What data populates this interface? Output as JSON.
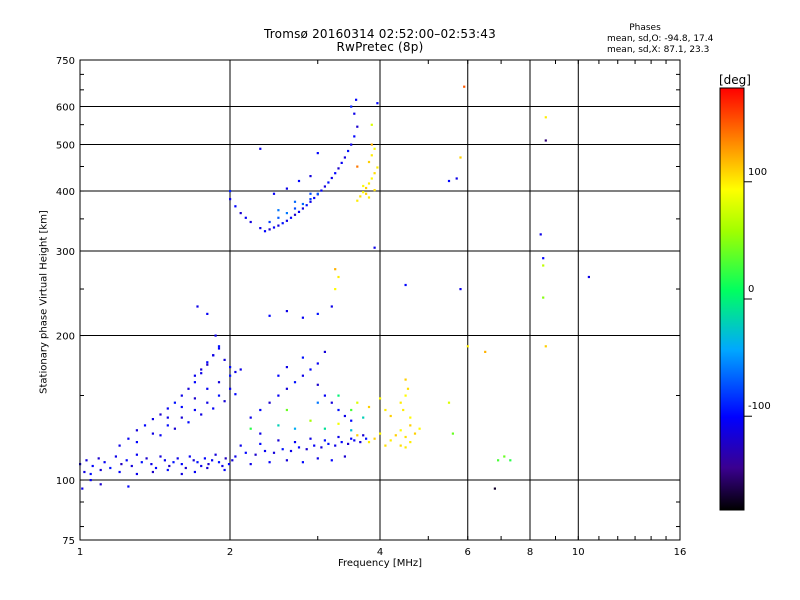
{
  "title": "Tromsø 20160314 02:52:00–02:53:43",
  "subtitle": "RwPretec (8p)",
  "stats": {
    "heading": "Phases",
    "o_line": "mean, sd,O: -94.8, 17.4",
    "x_line": "mean, sd,X:  87.1, 23.3"
  },
  "colorbar": {
    "unit": "[deg]",
    "ticks": [
      "100",
      "0",
      "-100"
    ],
    "tick_values": [
      100,
      0,
      -100
    ],
    "range": [
      -180,
      180
    ]
  },
  "chart_data": {
    "type": "scatter",
    "title": "Tromsø 20160314 02:52:00–02:53:43",
    "subtitle": "RwPretec (8p)",
    "xlabel": "Frequency [MHz]",
    "ylabel": "Stationary phase Virtual Height [km]",
    "x_scale": "log",
    "y_scale": "log",
    "xlim": [
      1,
      16
    ],
    "ylim": [
      75,
      750
    ],
    "x_ticks": [
      "1",
      "2",
      "4",
      "6",
      "8",
      "10",
      "16"
    ],
    "x_tick_values": [
      1,
      2,
      4,
      6,
      8,
      10,
      16
    ],
    "y_ticks": [
      "75",
      "100",
      "200",
      "300",
      "400",
      "500",
      "600",
      "750"
    ],
    "y_tick_values": [
      75,
      100,
      200,
      300,
      400,
      500,
      600,
      750
    ],
    "x_gridlines": [
      2,
      4,
      6,
      8,
      10
    ],
    "y_gridlines": [
      100,
      200,
      300,
      400,
      500,
      600
    ],
    "color_variable": "phase [deg]",
    "points": [
      [
        1.0,
        108,
        -110
      ],
      [
        1.03,
        110,
        -115
      ],
      [
        1.06,
        107,
        -100
      ],
      [
        1.09,
        111,
        -120
      ],
      [
        1.12,
        109,
        -105
      ],
      [
        1.15,
        106,
        -95
      ],
      [
        1.18,
        112,
        -110
      ],
      [
        1.21,
        108,
        -125
      ],
      [
        1.24,
        110,
        -100
      ],
      [
        1.27,
        107,
        -115
      ],
      [
        1.3,
        113,
        -105
      ],
      [
        1.33,
        109,
        -95
      ],
      [
        1.36,
        111,
        -120
      ],
      [
        1.39,
        108,
        -110
      ],
      [
        1.42,
        106,
        -100
      ],
      [
        1.45,
        112,
        -115
      ],
      [
        1.48,
        110,
        -105
      ],
      [
        1.51,
        107,
        -125
      ],
      [
        1.54,
        109,
        -95
      ],
      [
        1.57,
        111,
        -110
      ],
      [
        1.6,
        108,
        -100
      ],
      [
        1.63,
        106,
        -120
      ],
      [
        1.66,
        112,
        -105
      ],
      [
        1.69,
        110,
        -115
      ],
      [
        1.72,
        109,
        -95
      ],
      [
        1.75,
        107,
        -110
      ],
      [
        1.78,
        111,
        -100
      ],
      [
        1.81,
        108,
        -120
      ],
      [
        1.84,
        110,
        -105
      ],
      [
        1.87,
        113,
        -115
      ],
      [
        1.9,
        109,
        -95
      ],
      [
        1.93,
        107,
        -110
      ],
      [
        1.96,
        111,
        -125
      ],
      [
        1.99,
        108,
        -100
      ],
      [
        2.02,
        110,
        -115
      ],
      [
        1.02,
        104,
        -112
      ],
      [
        1.05,
        103,
        -98
      ],
      [
        1.1,
        105,
        -118
      ],
      [
        1.2,
        104,
        -102
      ],
      [
        1.3,
        103,
        -108
      ],
      [
        1.4,
        104,
        -122
      ],
      [
        1.5,
        105,
        -97
      ],
      [
        1.6,
        103,
        -113
      ],
      [
        1.7,
        104,
        -104
      ],
      [
        1.8,
        106,
        -119
      ],
      [
        1.95,
        105,
        -101
      ],
      [
        1.01,
        96,
        -110
      ],
      [
        1.05,
        100,
        -105
      ],
      [
        1.1,
        98,
        -120
      ],
      [
        1.25,
        97,
        -100
      ],
      [
        2.05,
        112,
        -110
      ],
      [
        2.15,
        114,
        -100
      ],
      [
        2.25,
        113,
        -120
      ],
      [
        2.35,
        115,
        -105
      ],
      [
        2.45,
        114,
        -115
      ],
      [
        2.55,
        116,
        -95
      ],
      [
        2.65,
        115,
        -110
      ],
      [
        2.75,
        117,
        -100
      ],
      [
        2.85,
        116,
        -120
      ],
      [
        2.95,
        118,
        -105
      ],
      [
        3.05,
        117,
        -115
      ],
      [
        3.15,
        119,
        -95
      ],
      [
        3.25,
        118,
        -110
      ],
      [
        3.35,
        120,
        -100
      ],
      [
        3.45,
        119,
        -120
      ],
      [
        3.55,
        121,
        -105
      ],
      [
        3.65,
        120,
        -115
      ],
      [
        3.75,
        122,
        -95
      ],
      [
        2.1,
        118,
        -108
      ],
      [
        2.3,
        119,
        -99
      ],
      [
        2.5,
        121,
        -117
      ],
      [
        2.7,
        120,
        -103
      ],
      [
        2.9,
        122,
        -112
      ],
      [
        3.1,
        121,
        -96
      ],
      [
        3.3,
        123,
        -109
      ],
      [
        3.5,
        122,
        -101
      ],
      [
        3.7,
        124,
        -118
      ],
      [
        2.2,
        108,
        -110
      ],
      [
        2.4,
        109,
        -104
      ],
      [
        2.6,
        110,
        -116
      ],
      [
        2.8,
        109,
        -99
      ],
      [
        3.0,
        111,
        -111
      ],
      [
        3.2,
        110,
        -102
      ],
      [
        3.4,
        112,
        -119
      ],
      [
        1.2,
        118,
        -110
      ],
      [
        1.25,
        122,
        -105
      ],
      [
        1.3,
        127,
        -115
      ],
      [
        1.35,
        130,
        -100
      ],
      [
        1.4,
        134,
        -110
      ],
      [
        1.45,
        137,
        -120
      ],
      [
        1.5,
        141,
        -105
      ],
      [
        1.55,
        145,
        -95
      ],
      [
        1.6,
        150,
        -110
      ],
      [
        1.65,
        155,
        -115
      ],
      [
        1.7,
        160,
        -100
      ],
      [
        1.75,
        167,
        -110
      ],
      [
        1.8,
        174,
        -125
      ],
      [
        1.85,
        182,
        -105
      ],
      [
        1.9,
        190,
        -95
      ],
      [
        1.87,
        200,
        -110
      ],
      [
        1.3,
        120,
        -100
      ],
      [
        1.4,
        125,
        -112
      ],
      [
        1.5,
        130,
        -98
      ],
      [
        1.6,
        135,
        -117
      ],
      [
        1.7,
        140,
        -104
      ],
      [
        1.8,
        145,
        -111
      ],
      [
        1.9,
        150,
        -96
      ],
      [
        2.0,
        155,
        -108
      ],
      [
        1.5,
        135,
        -110
      ],
      [
        1.6,
        142,
        -100
      ],
      [
        1.7,
        148,
        -120
      ],
      [
        1.8,
        155,
        -105
      ],
      [
        1.9,
        160,
        -115
      ],
      [
        2.0,
        165,
        -95
      ],
      [
        2.1,
        170,
        -110
      ],
      [
        1.45,
        124,
        -105
      ],
      [
        1.55,
        128,
        -118
      ],
      [
        1.65,
        132,
        -99
      ],
      [
        1.75,
        137,
        -112
      ],
      [
        1.85,
        141,
        -103
      ],
      [
        1.95,
        146,
        -116
      ],
      [
        2.05,
        151,
        -100
      ],
      [
        1.7,
        165,
        -108
      ],
      [
        1.75,
        170,
        -118
      ],
      [
        1.8,
        176,
        -100
      ],
      [
        1.85,
        182,
        -112
      ],
      [
        1.9,
        188,
        -104
      ],
      [
        1.95,
        178,
        -115
      ],
      [
        2.0,
        172,
        -99
      ],
      [
        2.05,
        168,
        -110
      ],
      [
        1.72,
        230,
        -110
      ],
      [
        1.8,
        222,
        -105
      ],
      [
        2.2,
        135,
        -110
      ],
      [
        2.3,
        140,
        -100
      ],
      [
        2.4,
        145,
        -120
      ],
      [
        2.5,
        150,
        -105
      ],
      [
        2.6,
        155,
        -115
      ],
      [
        2.7,
        160,
        -95
      ],
      [
        2.8,
        165,
        -110
      ],
      [
        2.9,
        170,
        -100
      ],
      [
        3.0,
        158,
        -120
      ],
      [
        3.1,
        150,
        -105
      ],
      [
        3.2,
        145,
        -115
      ],
      [
        3.3,
        140,
        -95
      ],
      [
        3.4,
        136,
        -110
      ],
      [
        3.5,
        133,
        -100
      ],
      [
        2.3,
        125,
        -110
      ],
      [
        2.5,
        130,
        -20
      ],
      [
        2.7,
        128,
        -40
      ],
      [
        2.9,
        133,
        60
      ],
      [
        3.1,
        128,
        -10
      ],
      [
        3.3,
        131,
        90
      ],
      [
        3.5,
        127,
        -30
      ],
      [
        3.6,
        124,
        110
      ],
      [
        2.5,
        165,
        -100
      ],
      [
        2.6,
        172,
        -110
      ],
      [
        2.8,
        180,
        -95
      ],
      [
        3.0,
        175,
        -105
      ],
      [
        3.1,
        185,
        -115
      ],
      [
        2.4,
        220,
        -100
      ],
      [
        2.6,
        225,
        -110
      ],
      [
        2.8,
        218,
        -105
      ],
      [
        3.0,
        222,
        -95
      ],
      [
        3.2,
        230,
        -110
      ],
      [
        3.25,
        250,
        95
      ],
      [
        3.3,
        265,
        100
      ],
      [
        3.25,
        275,
        120
      ],
      [
        2.2,
        128,
        20
      ],
      [
        2.6,
        140,
        40
      ],
      [
        3.0,
        145,
        -60
      ],
      [
        3.3,
        150,
        0
      ],
      [
        3.5,
        140,
        30
      ],
      [
        3.6,
        145,
        80
      ],
      [
        3.7,
        135,
        -20
      ],
      [
        3.8,
        142,
        110
      ],
      [
        2.3,
        335,
        -110
      ],
      [
        2.35,
        330,
        -100
      ],
      [
        2.4,
        333,
        -120
      ],
      [
        2.45,
        336,
        -105
      ],
      [
        2.5,
        339,
        -115
      ],
      [
        2.55,
        343,
        -95
      ],
      [
        2.6,
        347,
        -110
      ],
      [
        2.65,
        352,
        -100
      ],
      [
        2.7,
        357,
        -120
      ],
      [
        2.75,
        362,
        -105
      ],
      [
        2.8,
        368,
        -115
      ],
      [
        2.85,
        374,
        -95
      ],
      [
        2.9,
        380,
        -110
      ],
      [
        2.95,
        387,
        -100
      ],
      [
        3.0,
        394,
        -120
      ],
      [
        3.05,
        401,
        -105
      ],
      [
        3.1,
        409,
        -115
      ],
      [
        3.15,
        417,
        -95
      ],
      [
        3.2,
        426,
        -110
      ],
      [
        3.25,
        436,
        -100
      ],
      [
        3.3,
        446,
        -120
      ],
      [
        3.35,
        458,
        -105
      ],
      [
        3.4,
        470,
        -115
      ],
      [
        3.45,
        485,
        -95
      ],
      [
        3.5,
        500,
        -110
      ],
      [
        3.55,
        520,
        -100
      ],
      [
        3.6,
        545,
        -120
      ],
      [
        3.55,
        580,
        -110
      ],
      [
        3.58,
        620,
        -100
      ],
      [
        3.5,
        600,
        -90
      ],
      [
        2.4,
        345,
        -80
      ],
      [
        2.5,
        352,
        -70
      ],
      [
        2.6,
        360,
        -60
      ],
      [
        2.7,
        368,
        -75
      ],
      [
        2.8,
        376,
        -65
      ],
      [
        2.9,
        385,
        -80
      ],
      [
        3.0,
        395,
        -70
      ],
      [
        2.5,
        365,
        -60
      ],
      [
        2.7,
        380,
        -65
      ],
      [
        2.9,
        395,
        -75
      ],
      [
        2.0,
        385,
        -110
      ],
      [
        2.05,
        372,
        -100
      ],
      [
        2.1,
        360,
        -120
      ],
      [
        2.15,
        352,
        -105
      ],
      [
        2.2,
        345,
        -115
      ],
      [
        2.0,
        400,
        -90
      ],
      [
        2.45,
        395,
        -105
      ],
      [
        2.6,
        405,
        -110
      ],
      [
        2.75,
        420,
        -100
      ],
      [
        2.9,
        430,
        -115
      ],
      [
        2.3,
        490,
        -110
      ],
      [
        3.0,
        480,
        -100
      ],
      [
        3.6,
        382,
        100
      ],
      [
        3.65,
        390,
        105
      ],
      [
        3.7,
        398,
        95
      ],
      [
        3.75,
        406,
        110
      ],
      [
        3.8,
        415,
        100
      ],
      [
        3.85,
        425,
        95
      ],
      [
        3.9,
        436,
        105
      ],
      [
        3.95,
        448,
        100
      ],
      [
        3.8,
        460,
        110
      ],
      [
        3.85,
        475,
        100
      ],
      [
        3.9,
        490,
        95
      ],
      [
        3.75,
        395,
        110
      ],
      [
        3.8,
        388,
        100
      ],
      [
        3.9,
        402,
        105
      ],
      [
        3.7,
        410,
        95
      ],
      [
        3.85,
        500,
        120
      ],
      [
        3.6,
        450,
        140
      ],
      [
        3.85,
        550,
        80
      ],
      [
        3.9,
        305,
        -110
      ],
      [
        3.95,
        610,
        -100
      ],
      [
        3.8,
        120,
        100
      ],
      [
        3.9,
        122,
        110
      ],
      [
        4.0,
        125,
        95
      ],
      [
        4.1,
        118,
        105
      ],
      [
        4.2,
        121,
        100
      ],
      [
        4.3,
        124,
        110
      ],
      [
        4.4,
        127,
        95
      ],
      [
        4.5,
        123,
        105
      ],
      [
        4.6,
        120,
        100
      ],
      [
        4.7,
        125,
        110
      ],
      [
        4.8,
        128,
        95
      ],
      [
        4.4,
        118,
        105
      ],
      [
        4.5,
        117,
        100
      ],
      [
        4.6,
        130,
        110
      ],
      [
        4.4,
        145,
        100
      ],
      [
        4.5,
        150,
        95
      ],
      [
        4.55,
        155,
        105
      ],
      [
        4.5,
        162,
        110
      ],
      [
        4.45,
        140,
        100
      ],
      [
        4.6,
        135,
        95
      ],
      [
        4.1,
        140,
        100
      ],
      [
        4.0,
        148,
        95
      ],
      [
        4.2,
        136,
        110
      ],
      [
        5.5,
        420,
        -100
      ],
      [
        5.7,
        425,
        -110
      ],
      [
        5.9,
        660,
        150
      ],
      [
        5.8,
        250,
        -110
      ],
      [
        5.8,
        470,
        110
      ],
      [
        6.0,
        190,
        100
      ],
      [
        4.5,
        255,
        -100
      ],
      [
        5.5,
        145,
        80
      ],
      [
        5.6,
        125,
        40
      ],
      [
        6.5,
        185,
        120
      ],
      [
        6.9,
        110,
        30
      ],
      [
        7.1,
        112,
        40
      ],
      [
        7.3,
        110,
        20
      ],
      [
        6.8,
        96,
        -170
      ],
      [
        8.4,
        325,
        -110
      ],
      [
        8.5,
        290,
        -100
      ],
      [
        8.6,
        510,
        -150
      ],
      [
        8.6,
        570,
        100
      ],
      [
        8.5,
        240,
        50
      ],
      [
        8.6,
        190,
        110
      ],
      [
        8.5,
        280,
        70
      ],
      [
        10.5,
        265,
        -110
      ]
    ]
  }
}
